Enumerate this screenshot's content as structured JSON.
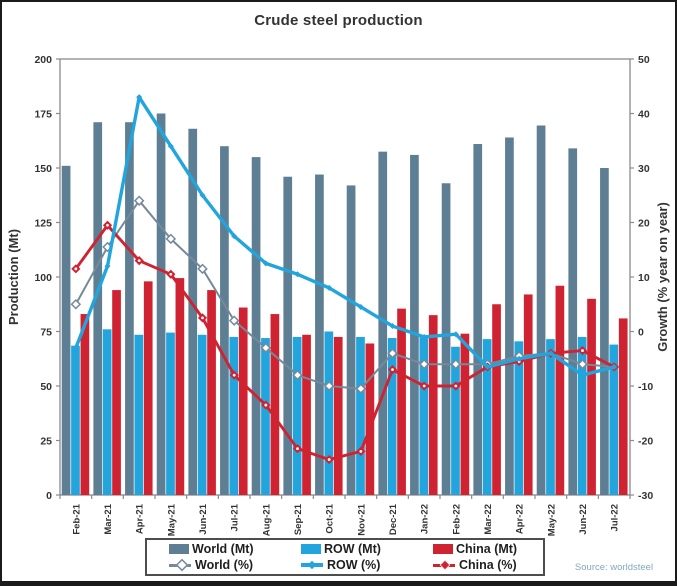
{
  "title": "Crude steel production",
  "source": "Source: worldsteel",
  "colors": {
    "world_bar": "#5e7f93",
    "row_bar": "#22a5dd",
    "china_bar": "#d02331",
    "world_line": "#76899a",
    "axis": "#8a8a8a",
    "text": "#333333",
    "source_text": "#7fa9c4"
  },
  "legend": {
    "items": [
      "World (Mt)",
      "ROW (Mt)",
      "China (Mt)",
      "World (%)",
      "ROW (%)",
      "China (%)"
    ]
  },
  "chart_data": {
    "type": "bar+line",
    "title": "Crude steel production",
    "grid": false,
    "legend_position": "bottom",
    "categories": [
      "Feb-21",
      "Mar-21",
      "Apr-21",
      "May-21",
      "Jun-21",
      "Jul-21",
      "Aug-21",
      "Sep-21",
      "Oct-21",
      "Nov-21",
      "Dec-21",
      "Jan-22",
      "Feb-22",
      "Mar-22",
      "Apr-22",
      "May-22",
      "Jun-22",
      "Jul-22"
    ],
    "left_axis": {
      "label": "Production (Mt)",
      "min": 0,
      "max": 200,
      "ticks": [
        0,
        25,
        50,
        75,
        100,
        125,
        150,
        175,
        200
      ]
    },
    "right_axis": {
      "label": "Growth (% year on year)",
      "min": -30,
      "max": 50,
      "ticks": [
        -30,
        -20,
        -10,
        0,
        10,
        20,
        30,
        40,
        50
      ]
    },
    "bar_series": [
      {
        "name": "World (Mt)",
        "color": "#5e7f93",
        "values": [
          151,
          171,
          171,
          175,
          168,
          160,
          155,
          146,
          147,
          142,
          157.5,
          156,
          143,
          161,
          164,
          169.5,
          159,
          150
        ]
      },
      {
        "name": "ROW (Mt)",
        "color": "#22a5dd",
        "values": [
          68.5,
          76,
          73.5,
          74.5,
          73.5,
          72.5,
          72,
          72.5,
          75,
          72.5,
          72,
          73,
          68,
          71.5,
          70.5,
          71.5,
          72.5,
          69
        ]
      },
      {
        "name": "China (Mt)",
        "color": "#d02331",
        "values": [
          83,
          94,
          98,
          99.5,
          94,
          86,
          83,
          73.5,
          72.5,
          69.5,
          85.5,
          82.5,
          74,
          87.5,
          92,
          96,
          90,
          81
        ]
      }
    ],
    "line_series": [
      {
        "name": "World (%)",
        "color": "#76899a",
        "width": 2,
        "marker": "open-diamond",
        "values": [
          5,
          15.5,
          24,
          17,
          11.5,
          2,
          -3,
          -8,
          -10,
          -10.5,
          -4,
          -6,
          -6,
          -6,
          -4.5,
          -4,
          -6,
          -6.5
        ]
      },
      {
        "name": "ROW (%)",
        "color": "#22a5dd",
        "width": 3.4,
        "marker": "diamond",
        "values": [
          -3,
          12,
          43,
          34,
          25,
          17.5,
          12.5,
          10.5,
          8,
          4.5,
          1,
          -1,
          -0.5,
          -6.5,
          -5,
          -4,
          -8,
          -6.5
        ]
      },
      {
        "name": "China (%)",
        "color": "#d02331",
        "width": 2.9,
        "marker": "diamond-dot",
        "values": [
          11.5,
          19.5,
          13,
          10.5,
          2.5,
          -8,
          -13.5,
          -21.5,
          -23.5,
          -22,
          -7,
          -10,
          -10,
          -6.5,
          -5.5,
          -4,
          -3.5,
          -6.5
        ]
      }
    ]
  }
}
